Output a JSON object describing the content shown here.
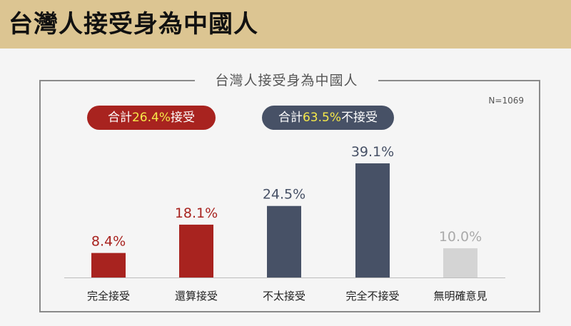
{
  "header": {
    "title": "台灣人接受身為中國人"
  },
  "frame": {
    "title": "台灣人接受身為中國人",
    "n_label": "N=1069"
  },
  "summary": {
    "accept": {
      "prefix": "合計",
      "value": "26.4%",
      "suffix": "接受"
    },
    "reject": {
      "prefix": "合計",
      "value": "63.5%",
      "suffix": "不接受"
    }
  },
  "colors": {
    "accept": "#a8231f",
    "reject": "#475166",
    "unsure": "#d4d4d4",
    "header": "#dcc592",
    "highlight": "#f6e94a"
  },
  "chart_data": {
    "type": "bar",
    "title": "台灣人接受身為中國人",
    "categories": [
      "完全接受",
      "還算接受",
      "不太接受",
      "完全不接受",
      "無明確意見"
    ],
    "values": [
      8.4,
      18.1,
      24.5,
      39.1,
      10.0
    ],
    "value_labels": [
      "8.4%",
      "18.1%",
      "24.5%",
      "39.1%",
      "10.0%"
    ],
    "bar_colors": [
      "#a8231f",
      "#a8231f",
      "#475166",
      "#475166",
      "#d4d4d4"
    ],
    "label_colors": [
      "#a8231f",
      "#a8231f",
      "#475166",
      "#475166",
      "#aaaaaa"
    ],
    "ylim": [
      0,
      40
    ],
    "grid": false
  }
}
